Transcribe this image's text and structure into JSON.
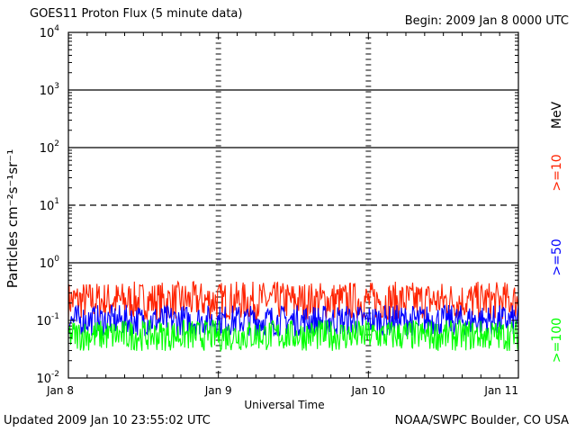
{
  "header": {
    "title": "GOES11 Proton Flux (5 minute data)",
    "begin": "Begin: 2009 Jan 8 0000 UTC"
  },
  "footer": {
    "updated": "Updated 2009 Jan 10 23:55:02 UTC",
    "credit": "NOAA/SWPC Boulder, CO USA"
  },
  "chart_data": {
    "type": "line",
    "title": "GOES11 Proton Flux (5 minute data)",
    "xlabel": "Universal Time",
    "ylabel": "Particles cm⁻²s⁻¹sr⁻¹",
    "yscale": "log",
    "ylim": [
      0.01,
      10000
    ],
    "yticks": [
      {
        "value": 10000,
        "base": "10",
        "exp": "4"
      },
      {
        "value": 1000,
        "base": "10",
        "exp": "3"
      },
      {
        "value": 100,
        "base": "10",
        "exp": "2"
      },
      {
        "value": 10,
        "base": "10",
        "exp": "1"
      },
      {
        "value": 1,
        "base": "10",
        "exp": "0"
      },
      {
        "value": 0.1,
        "base": "10",
        "exp": "-1"
      },
      {
        "value": 0.01,
        "base": "10",
        "exp": "-2"
      }
    ],
    "x_categories": [
      "Jan 8",
      "Jan 9",
      "Jan 10",
      "Jan 11"
    ],
    "xlim_days": [
      0,
      3
    ],
    "threshold_lines": [
      {
        "value": 1000,
        "style": "solid"
      },
      {
        "value": 100,
        "style": "solid"
      },
      {
        "value": 10,
        "style": "dashed"
      },
      {
        "value": 1,
        "style": "solid"
      }
    ],
    "unit_label": "MeV",
    "series": [
      {
        "name": ">=10",
        "color": "#ff2200",
        "base": 0.22,
        "min": 0.1,
        "max": 0.55
      },
      {
        "name": ">=50",
        "color": "#0000ff",
        "base": 0.1,
        "min": 0.05,
        "max": 0.2
      },
      {
        "name": ">=100",
        "color": "#00ff00",
        "base": 0.055,
        "min": 0.025,
        "max": 0.1
      }
    ],
    "grid": false,
    "legend": "right-side vertical"
  }
}
